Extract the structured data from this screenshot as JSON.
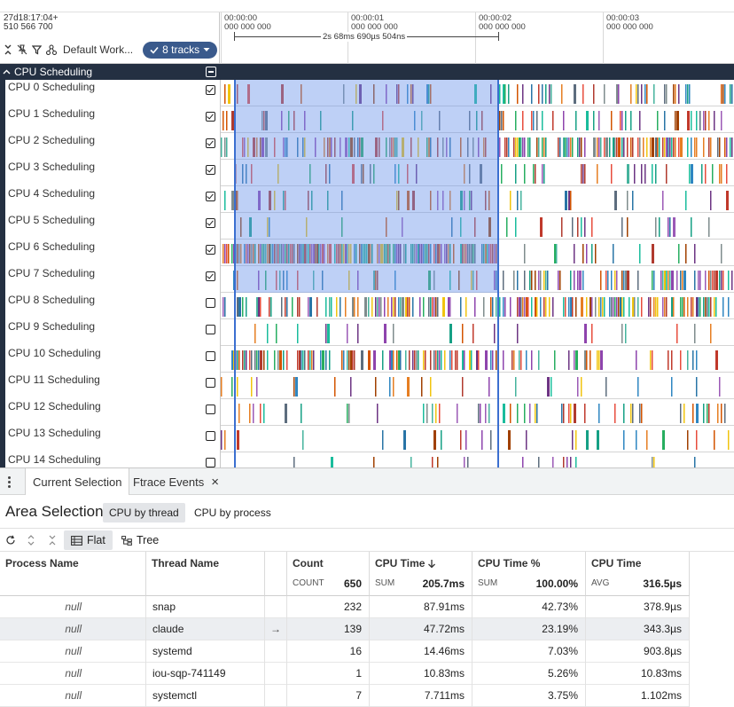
{
  "timeline": {
    "start_timestamp_line1": "27d18:17:04+",
    "start_timestamp_line2": "510 566 700",
    "ticks": [
      {
        "line1": "00:00:00",
        "line2": "000 000 000"
      },
      {
        "line1": "00:00:01",
        "line2": "000 000 000"
      },
      {
        "line1": "00:00:02",
        "line2": "000 000 000"
      },
      {
        "line1": "00:00:03",
        "line2": "000 000 000"
      }
    ],
    "selection_span_label": "2s 68ms 690µs 504ns"
  },
  "toolbar": {
    "workspace_label": "Default Work...",
    "tracks_button_label": "8 tracks"
  },
  "track_group": {
    "title": "CPU Scheduling",
    "tracks": [
      {
        "name": "CPU 0 Scheduling",
        "checked": true
      },
      {
        "name": "CPU 1 Scheduling",
        "checked": true
      },
      {
        "name": "CPU 2 Scheduling",
        "checked": true
      },
      {
        "name": "CPU 3 Scheduling",
        "checked": true
      },
      {
        "name": "CPU 4 Scheduling",
        "checked": true
      },
      {
        "name": "CPU 5 Scheduling",
        "checked": true
      },
      {
        "name": "CPU 6 Scheduling",
        "checked": true
      },
      {
        "name": "CPU 7 Scheduling",
        "checked": true
      },
      {
        "name": "CPU 8 Scheduling",
        "checked": false
      },
      {
        "name": "CPU 9 Scheduling",
        "checked": false
      },
      {
        "name": "CPU 10 Scheduling",
        "checked": false
      },
      {
        "name": "CPU 11 Scheduling",
        "checked": false
      },
      {
        "name": "CPU 12 Scheduling",
        "checked": false
      },
      {
        "name": "CPU 13 Scheduling",
        "checked": false
      },
      {
        "name": "CPU 14 Scheduling",
        "checked": false
      }
    ]
  },
  "bottom_panel": {
    "tabs": [
      {
        "label": "Current Selection",
        "closable": false,
        "active": true
      },
      {
        "label": "Ftrace Events",
        "closable": true,
        "active": false
      }
    ],
    "title": "Area Selection",
    "chips": [
      "CPU by thread",
      "CPU by process"
    ],
    "view_buttons": [
      "Flat",
      "Tree"
    ]
  },
  "table": {
    "columns": [
      {
        "header": "Process Name",
        "agg_label": "",
        "agg_value": ""
      },
      {
        "header": "Thread Name",
        "agg_label": "",
        "agg_value": ""
      },
      {
        "header": "Count",
        "agg_label": "COUNT",
        "agg_value": "650"
      },
      {
        "header": "CPU Time",
        "agg_label": "SUM",
        "agg_value": "205.7ms",
        "sorted": "desc"
      },
      {
        "header": "CPU Time %",
        "agg_label": "SUM",
        "agg_value": "100.00%"
      },
      {
        "header": "CPU Time",
        "agg_label": "AVG",
        "agg_value": "316.5µs"
      }
    ],
    "rows": [
      {
        "process": "null",
        "thread": "snap",
        "count": "232",
        "cpu_time": "87.91ms",
        "cpu_pct": "42.73%",
        "avg": "378.9µs",
        "highlighted": false
      },
      {
        "process": "null",
        "thread": "claude",
        "count": "139",
        "cpu_time": "47.72ms",
        "cpu_pct": "23.19%",
        "avg": "343.3µs",
        "highlighted": true
      },
      {
        "process": "null",
        "thread": "systemd",
        "count": "16",
        "cpu_time": "14.46ms",
        "cpu_pct": "7.03%",
        "avg": "903.8µs",
        "highlighted": false
      },
      {
        "process": "null",
        "thread": "iou-sqp-741149",
        "count": "1",
        "cpu_time": "10.83ms",
        "cpu_pct": "5.26%",
        "avg": "10.83ms",
        "highlighted": false
      },
      {
        "process": "null",
        "thread": "systemctl",
        "count": "7",
        "cpu_time": "7.711ms",
        "cpu_pct": "3.75%",
        "avg": "1.102ms",
        "highlighted": false
      }
    ]
  },
  "colors": {
    "group_header_bg": "#243042",
    "tracks_button_bg": "#3a5a8c",
    "selection_fill": "#6e96eb",
    "selection_edge": "#3b6fd0"
  }
}
